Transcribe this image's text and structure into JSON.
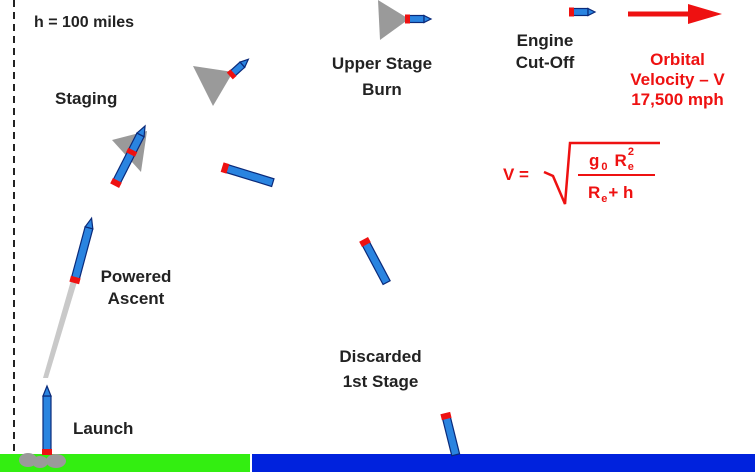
{
  "altitude": {
    "label": "h  = 100 miles"
  },
  "labels": {
    "staging": "Staging",
    "powered_line1": "Powered",
    "powered_line2": "Ascent",
    "launch": "Launch",
    "upper_line1": "Upper Stage",
    "upper_line2": "Burn",
    "engine_line1": "Engine",
    "engine_line2": "Cut-Off",
    "discarded_line1": "Discarded",
    "discarded_line2": "1st  Stage"
  },
  "orbital": {
    "line1": "Orbital",
    "line2": "Velocity – V",
    "line3": "17,500 mph"
  },
  "formula": {
    "lhs": "V =",
    "num_g": "g",
    "num_g_sub": "0",
    "num_r": "R",
    "num_r_sub": "e",
    "num_r_sup": "2",
    "den_r": "R",
    "den_r_sub": "e",
    "den_plus_h": "+ h"
  },
  "colors": {
    "rocket_body": "#2a84e0",
    "rocket_outline": "#0a2a7a",
    "rocket_base": "#ee1111",
    "ground": "#33ee11",
    "ocean": "#0022dd",
    "accent": "#ee1111",
    "exhaust": "#a0a0a0"
  },
  "icons": {
    "rocket": "rocket-icon",
    "exhaust": "exhaust-cone-icon",
    "arrow": "velocity-arrow-icon"
  }
}
